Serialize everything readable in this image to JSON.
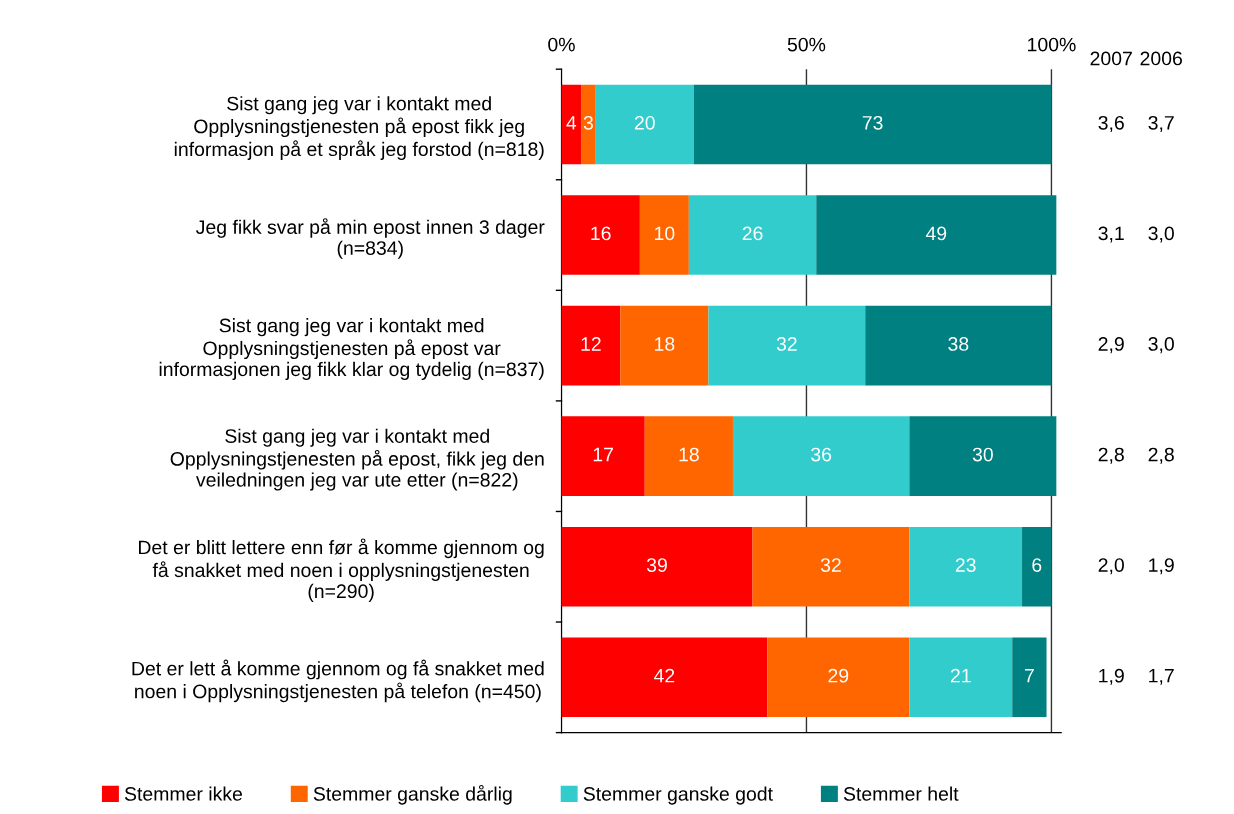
{
  "chart_data": {
    "type": "bar",
    "orientation": "horizontal",
    "stacked": true,
    "data_labels": true,
    "grid": "x",
    "legend": "bottom",
    "categories": [
      "Sist gang jeg var i kontakt med\nOpplysningstjenesten på epost fikk jeg\ninformasjon på et språk jeg forstod (n=818)",
      "Jeg fikk svar på min epost innen 3 dager\n(n=834)",
      "Sist gang jeg var i kontakt med\nOpplysningstjenesten på epost var\ninformasjonen jeg fikk klar og tydelig (n=837)",
      "Sist gang jeg var i kontakt med\nOpplysningstjenesten på epost, fikk jeg den\nveiledningen jeg var ute etter (n=822)",
      "Det er blitt lettere enn før å komme gjennom og\nfå snakket med noen i opplysningstjenesten\n(n=290)",
      "Det er lett å komme gjennom og få snakket med\nnoen i Opplysningstjenesten på telefon (n=450)"
    ],
    "series": [
      {
        "name": "Stemmer ikke",
        "color": "#ff0000",
        "values": [
          4,
          16,
          12,
          17,
          39,
          42
        ]
      },
      {
        "name": "Stemmer ganske dårlig",
        "color": "#ff6600",
        "values": [
          3,
          10,
          18,
          18,
          32,
          29
        ]
      },
      {
        "name": "Stemmer ganske godt",
        "color": "#33cccc",
        "values": [
          20,
          26,
          32,
          36,
          23,
          21
        ]
      },
      {
        "name": "Stemmer helt",
        "color": "#008080",
        "values": [
          73,
          49,
          38,
          30,
          6,
          7
        ]
      }
    ],
    "xlim": [
      0,
      102
    ],
    "xticks": [
      {
        "value": 0,
        "label": "0%"
      },
      {
        "value": 50,
        "label": "50%"
      },
      {
        "value": 100,
        "label": "100%"
      }
    ],
    "annotations": [
      "2007",
      "2006",
      "3,6",
      "3,7",
      "3,1",
      "3,0",
      "2,9",
      "3,0",
      "2,8",
      "2,8",
      "2,0",
      "1,9",
      "1,9",
      "1,7"
    ]
  }
}
